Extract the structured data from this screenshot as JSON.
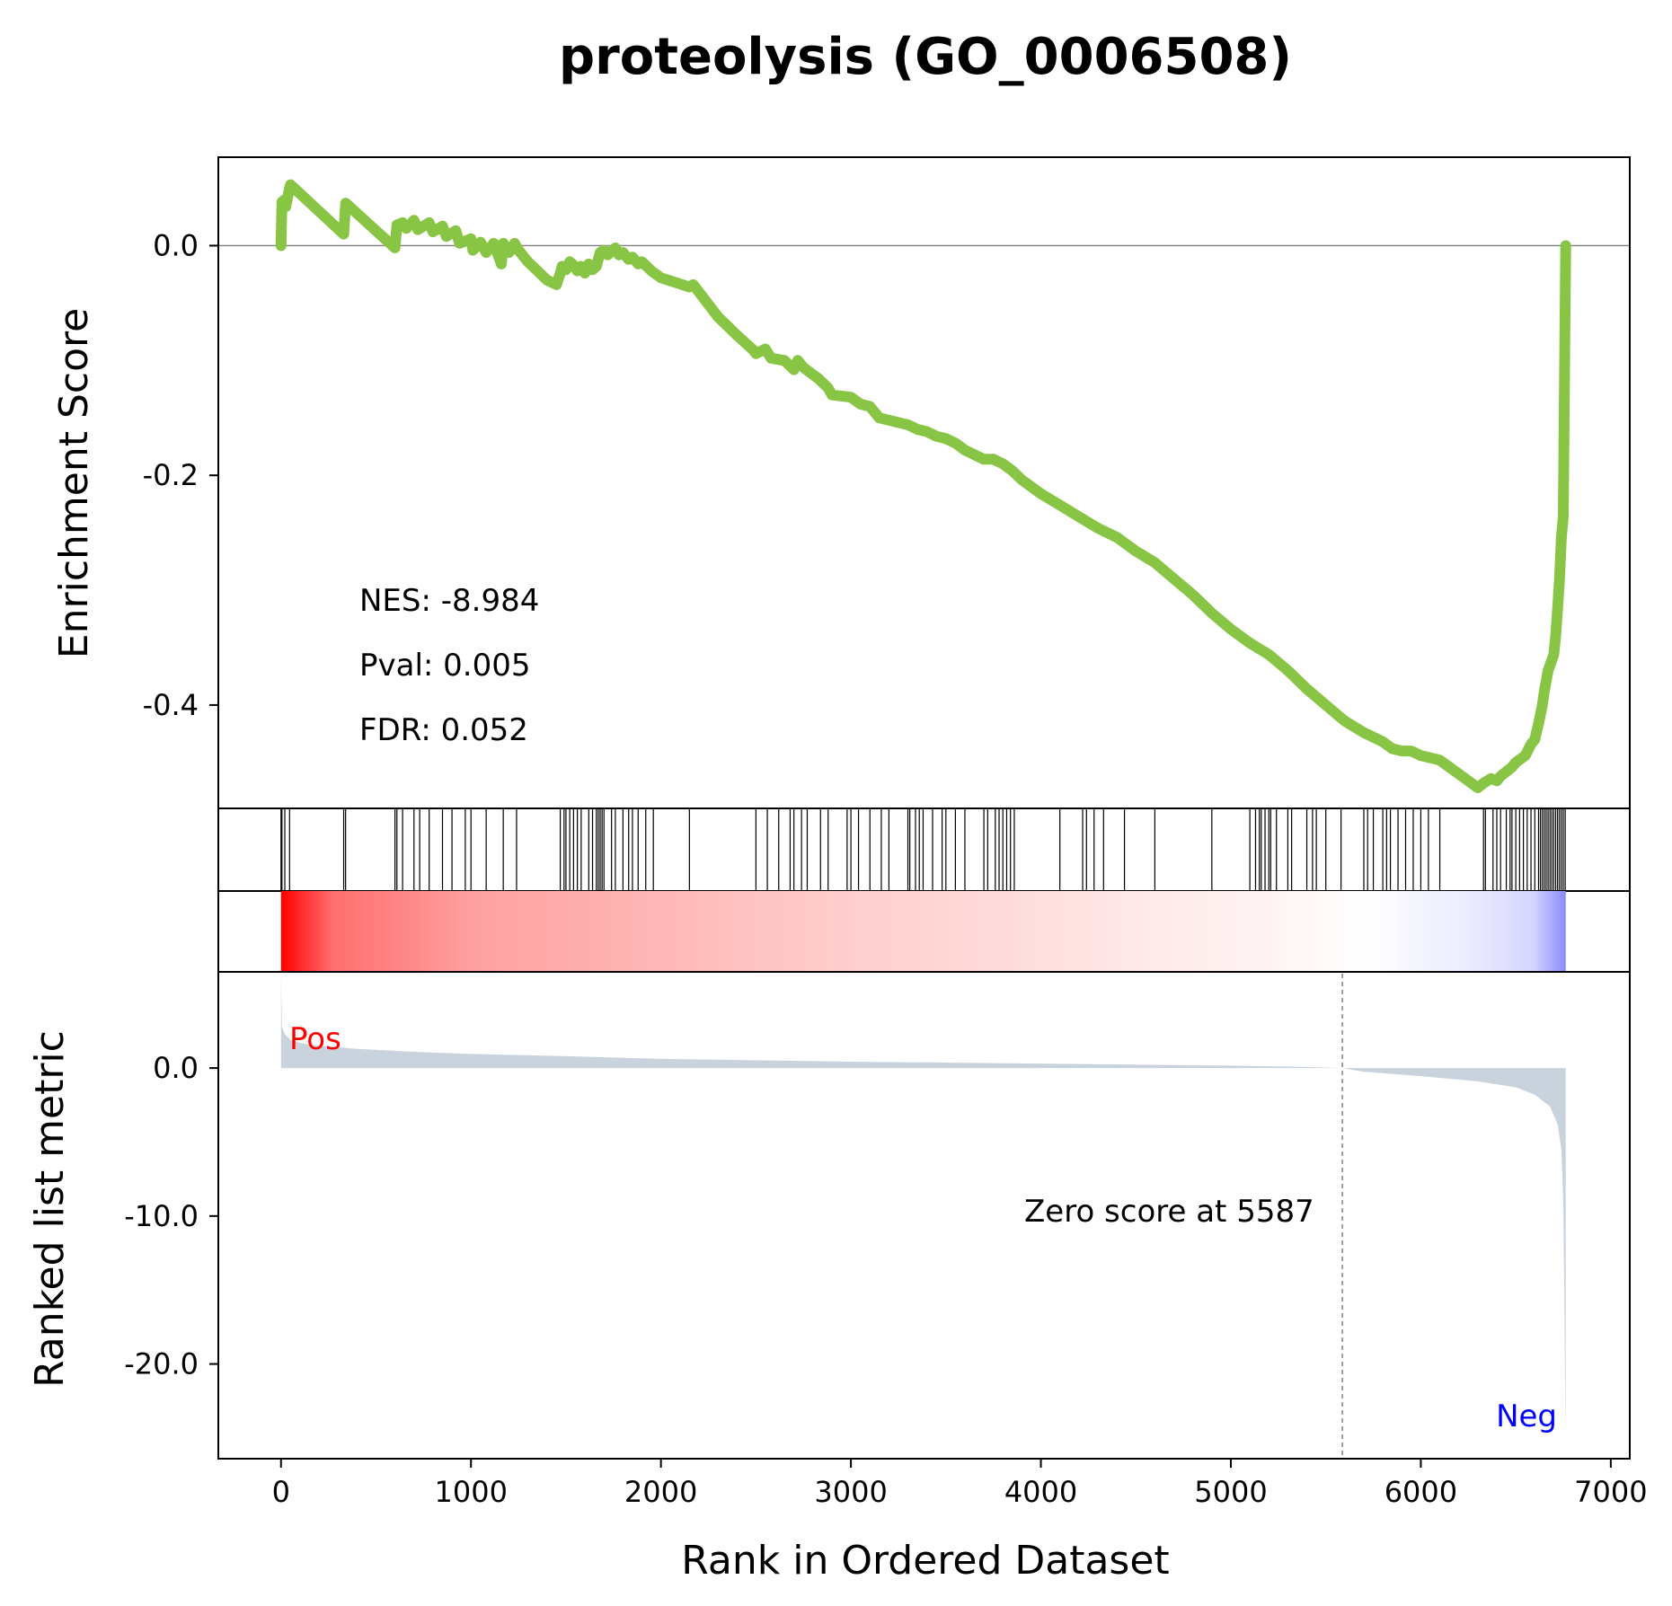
{
  "title": "proteolysis (GO_0006508)",
  "colors": {
    "es_line": "#88c544",
    "pos_label": "#ff0000",
    "neg_label": "#0000ff",
    "metric_fill": "#c9d3dd",
    "zero_line": "#808080"
  },
  "chart_data": [
    {
      "panel": "enrichment",
      "type": "line",
      "ylabel": "Enrichment Score",
      "xlim": [
        -330,
        7100
      ],
      "ylim": [
        -0.49,
        0.077
      ],
      "yticks": [
        0.0,
        -0.2,
        -0.4
      ],
      "ytick_labels": [
        "0.0",
        "-0.2",
        "-0.4"
      ],
      "stats": [
        "NES: -8.984",
        "Pval: 0.005",
        "FDR: 0.052"
      ],
      "x": [
        0,
        5,
        20,
        25,
        45,
        50,
        330,
        340,
        600,
        610,
        640,
        660,
        700,
        720,
        780,
        800,
        850,
        870,
        920,
        940,
        1000,
        1010,
        1050,
        1080,
        1120,
        1160,
        1170,
        1200,
        1230,
        1250,
        1300,
        1350,
        1400,
        1450,
        1470,
        1480,
        1500,
        1520,
        1540,
        1560,
        1580,
        1600,
        1620,
        1640,
        1660,
        1680,
        1700,
        1720,
        1760,
        1780,
        1800,
        1830,
        1850,
        1880,
        1900,
        1950,
        2000,
        2150,
        2170,
        2300,
        2400,
        2480,
        2500,
        2550,
        2580,
        2650,
        2700,
        2720,
        2750,
        2830,
        2880,
        2900,
        3000,
        3050,
        3100,
        3150,
        3200,
        3250,
        3300,
        3350,
        3400,
        3450,
        3500,
        3550,
        3600,
        3650,
        3700,
        3750,
        3800,
        3850,
        3900,
        3950,
        4000,
        4100,
        4200,
        4300,
        4400,
        4500,
        4600,
        4700,
        4800,
        4900,
        5000,
        5100,
        5200,
        5300,
        5400,
        5500,
        5600,
        5700,
        5750,
        5800,
        5850,
        5900,
        5950,
        6000,
        6050,
        6100,
        6150,
        6200,
        6250,
        6300,
        6330,
        6350,
        6370,
        6400,
        6420,
        6450,
        6480,
        6500,
        6550,
        6580,
        6600,
        6620,
        6640,
        6650,
        6670,
        6700,
        6710,
        6720,
        6730,
        6740,
        6750,
        6760,
        6763
      ],
      "y": [
        0.0,
        0.038,
        0.04,
        0.034,
        0.05,
        0.053,
        0.01,
        0.037,
        -0.002,
        0.018,
        0.02,
        0.015,
        0.022,
        0.014,
        0.02,
        0.012,
        0.017,
        0.008,
        0.013,
        0.002,
        0.006,
        -0.004,
        0.003,
        -0.006,
        0.002,
        -0.016,
        0.002,
        -0.006,
        0.002,
        -0.004,
        -0.014,
        -0.022,
        -0.03,
        -0.034,
        -0.024,
        -0.018,
        -0.021,
        -0.014,
        -0.017,
        -0.022,
        -0.018,
        -0.024,
        -0.016,
        -0.021,
        -0.018,
        -0.006,
        -0.004,
        -0.008,
        -0.002,
        -0.008,
        -0.006,
        -0.012,
        -0.01,
        -0.016,
        -0.014,
        -0.022,
        -0.028,
        -0.036,
        -0.034,
        -0.062,
        -0.078,
        -0.09,
        -0.094,
        -0.09,
        -0.098,
        -0.1,
        -0.108,
        -0.1,
        -0.106,
        -0.116,
        -0.124,
        -0.13,
        -0.132,
        -0.138,
        -0.14,
        -0.15,
        -0.152,
        -0.154,
        -0.156,
        -0.16,
        -0.162,
        -0.166,
        -0.168,
        -0.172,
        -0.178,
        -0.182,
        -0.186,
        -0.186,
        -0.19,
        -0.196,
        -0.204,
        -0.21,
        -0.216,
        -0.226,
        -0.236,
        -0.246,
        -0.254,
        -0.266,
        -0.276,
        -0.29,
        -0.304,
        -0.32,
        -0.334,
        -0.346,
        -0.356,
        -0.37,
        -0.386,
        -0.4,
        -0.414,
        -0.424,
        -0.428,
        -0.432,
        -0.438,
        -0.44,
        -0.44,
        -0.444,
        -0.446,
        -0.448,
        -0.454,
        -0.46,
        -0.466,
        -0.472,
        -0.468,
        -0.466,
        -0.464,
        -0.466,
        -0.462,
        -0.458,
        -0.454,
        -0.45,
        -0.444,
        -0.434,
        -0.43,
        -0.416,
        -0.4,
        -0.388,
        -0.37,
        -0.356,
        -0.34,
        -0.316,
        -0.29,
        -0.254,
        -0.236,
        -0.05,
        0.0
      ]
    },
    {
      "panel": "hits",
      "type": "rug",
      "x": [
        0,
        5,
        20,
        45,
        330,
        340,
        600,
        610,
        640,
        700,
        730,
        780,
        850,
        900,
        970,
        1000,
        1080,
        1170,
        1240,
        1470,
        1490,
        1500,
        1520,
        1540,
        1560,
        1580,
        1620,
        1640,
        1660,
        1670,
        1680,
        1690,
        1700,
        1740,
        1760,
        1800,
        1830,
        1850,
        1880,
        1920,
        1960,
        2150,
        2500,
        2560,
        2620,
        2680,
        2700,
        2740,
        2770,
        2840,
        2880,
        2980,
        3000,
        3040,
        3100,
        3160,
        3200,
        3300,
        3310,
        3340,
        3360,
        3380,
        3430,
        3480,
        3500,
        3550,
        3600,
        3700,
        3720,
        3760,
        3780,
        3800,
        3820,
        3840,
        3860,
        4100,
        4220,
        4240,
        4280,
        4330,
        4440,
        4600,
        4900,
        5100,
        5130,
        5150,
        5160,
        5180,
        5200,
        5210,
        5240,
        5300,
        5320,
        5400,
        5430,
        5450,
        5500,
        5580,
        5700,
        5720,
        5750,
        5800,
        5820,
        5840,
        5880,
        5920,
        5960,
        6000,
        6040,
        6100,
        6330,
        6340,
        6380,
        6400,
        6420,
        6450,
        6470,
        6480,
        6500,
        6520,
        6540,
        6560,
        6580,
        6600,
        6620,
        6630,
        6640,
        6650,
        6660,
        6670,
        6680,
        6690,
        6700,
        6710,
        6720,
        6730,
        6740,
        6750,
        6760
      ]
    },
    {
      "panel": "ranked_metric",
      "type": "area",
      "ylabel": "Ranked list metric",
      "xlabel": "Rank in Ordered Dataset",
      "xlim": [
        -330,
        7100
      ],
      "ylim": [
        -26.4,
        6.5
      ],
      "yticks": [
        0.0,
        -10.0,
        -20.0
      ],
      "ytick_labels": [
        "0.0",
        "-10.0",
        "-20.0"
      ],
      "xticks": [
        0,
        1000,
        2000,
        3000,
        4000,
        5000,
        6000,
        7000
      ],
      "xtick_labels": [
        "0",
        "1000",
        "2000",
        "3000",
        "4000",
        "5000",
        "6000",
        "7000"
      ],
      "zero_cross": 5587,
      "pos_label": "Pos",
      "neg_label": "Neg",
      "zero_text": "Zero score at 5587",
      "x": [
        0,
        5,
        20,
        50,
        100,
        200,
        400,
        700,
        1000,
        1500,
        2000,
        3000,
        4000,
        5000,
        5400,
        5587,
        5700,
        6000,
        6300,
        6500,
        6600,
        6680,
        6720,
        6740,
        6750,
        6755,
        6760,
        6763
      ],
      "y": [
        6.2,
        2.8,
        2.3,
        1.9,
        1.7,
        1.5,
        1.3,
        1.1,
        0.95,
        0.8,
        0.62,
        0.43,
        0.3,
        0.16,
        0.07,
        0.0,
        -0.25,
        -0.55,
        -0.9,
        -1.3,
        -1.8,
        -2.6,
        -3.8,
        -5.5,
        -9.0,
        -15.0,
        -22.0,
        -25.0
      ]
    }
  ]
}
